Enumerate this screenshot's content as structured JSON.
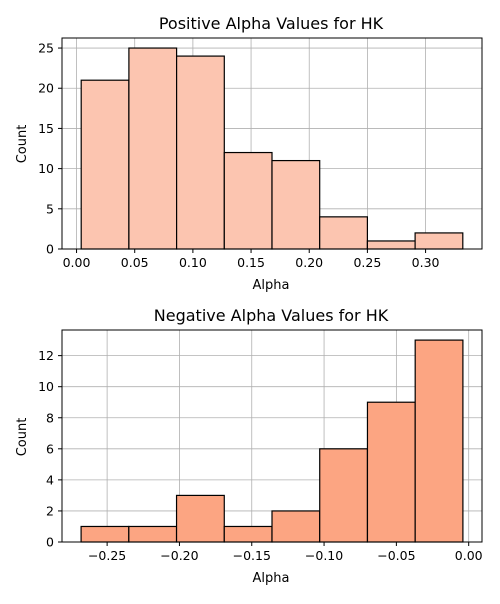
{
  "chart_data": [
    {
      "type": "bar",
      "title": "Positive Alpha Values for HK",
      "xlabel": "Alpha",
      "ylabel": "Count",
      "bin_edges": [
        0.004,
        0.045,
        0.086,
        0.127,
        0.168,
        0.209,
        0.25,
        0.291,
        0.332
      ],
      "values": [
        21,
        25,
        24,
        12,
        11,
        4,
        1,
        2
      ],
      "xlim": [
        -0.0125,
        0.3485
      ],
      "ylim": [
        0,
        26.25
      ],
      "xticks": [
        0.0,
        0.05,
        0.1,
        0.15,
        0.2,
        0.25,
        0.3
      ],
      "xtick_labels": [
        "0.00",
        "0.05",
        "0.10",
        "0.15",
        "0.20",
        "0.25",
        "0.30"
      ],
      "yticks": [
        0,
        5,
        10,
        15,
        20,
        25
      ],
      "ytick_labels": [
        "0",
        "5",
        "10",
        "15",
        "20",
        "25"
      ],
      "grid": true,
      "bar_color": "#fcc5b0",
      "edge_color": "#000000"
    },
    {
      "type": "bar",
      "title": "Negative Alpha Values for HK",
      "xlabel": "Alpha",
      "ylabel": "Count",
      "bin_edges": [
        -0.268,
        -0.235,
        -0.202,
        -0.169,
        -0.136,
        -0.103,
        -0.07,
        -0.037,
        -0.004
      ],
      "values": [
        1,
        1,
        3,
        1,
        2,
        6,
        9,
        13
      ],
      "xlim": [
        -0.2812,
        0.0092
      ],
      "ylim": [
        0,
        13.65
      ],
      "xticks": [
        -0.25,
        -0.2,
        -0.15,
        -0.1,
        -0.05,
        0.0
      ],
      "xtick_labels": [
        "−0.25",
        "−0.20",
        "−0.15",
        "−0.10",
        "−0.05",
        "0.00"
      ],
      "yticks": [
        0,
        2,
        4,
        6,
        8,
        10,
        12
      ],
      "ytick_labels": [
        "0",
        "2",
        "4",
        "6",
        "8",
        "10",
        "12"
      ],
      "grid": true,
      "bar_color": "#fca582",
      "edge_color": "#000000"
    }
  ]
}
